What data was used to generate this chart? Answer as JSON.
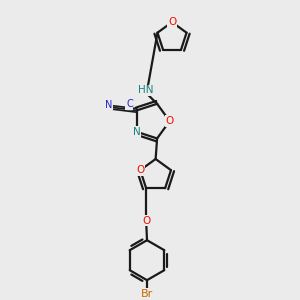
{
  "bg_color": "#ebebeb",
  "bond_color": "#1a1a1a",
  "bond_width": 1.6,
  "atom_colors": {
    "O": "#ee1100",
    "N": "#1a8080",
    "Br": "#cc6600",
    "CN_blue": "#2222cc"
  },
  "figsize": [
    3.0,
    3.0
  ],
  "dpi": 100
}
